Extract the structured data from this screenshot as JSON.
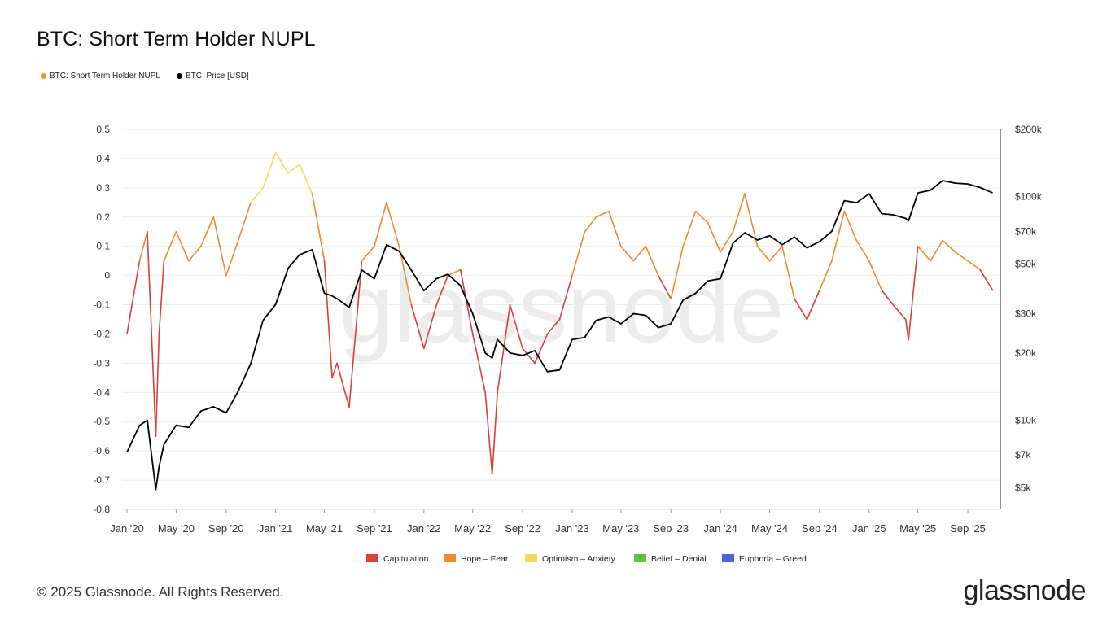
{
  "title": "BTC: Short Term Holder NUPL",
  "legend_top": [
    {
      "label": "BTC: Short Term Holder NUPL",
      "color": "#f7931a"
    },
    {
      "label": "BTC: Price [USD]",
      "color": "#000000"
    }
  ],
  "footer": "© 2025 Glassnode. All Rights Reserved.",
  "brand": "glassnode",
  "watermark": "glassnode",
  "chart_data": {
    "type": "line",
    "title": "BTC: Short Term Holder NUPL",
    "x_ticks": [
      "Jan '20",
      "May '20",
      "Sep '20",
      "Jan '21",
      "May '21",
      "Sep '21",
      "Jan '22",
      "May '22",
      "Sep '22",
      "Jan '23",
      "May '23",
      "Sep '23",
      "Jan '24",
      "May '24",
      "Sep '24",
      "Jan '25",
      "May '25",
      "Sep '25"
    ],
    "y_left_ticks": [
      "0.5",
      "0.4",
      "0.3",
      "0.2",
      "0.1",
      "0",
      "-0.1",
      "-0.2",
      "-0.3",
      "-0.4",
      "-0.5",
      "-0.6",
      "-0.7",
      "-0.8"
    ],
    "y_left_range": [
      -0.8,
      0.5
    ],
    "y_right_ticks": [
      {
        "label": "$200k",
        "value": 200000
      },
      {
        "label": "$100k",
        "value": 100000
      },
      {
        "label": "$70k",
        "value": 70000
      },
      {
        "label": "$50k",
        "value": 50000
      },
      {
        "label": "$30k",
        "value": 30000
      },
      {
        "label": "$20k",
        "value": 20000
      },
      {
        "label": "$10k",
        "value": 10000
      },
      {
        "label": "$7k",
        "value": 7000
      },
      {
        "label": "$5k",
        "value": 5000
      }
    ],
    "y_right_scale": "log",
    "zones": [
      {
        "name": "Capitulation",
        "color": "#d9403a"
      },
      {
        "name": "Hope – Fear",
        "color": "#ef8a31"
      },
      {
        "name": "Optimism – Anxiety",
        "color": "#f3dc58"
      },
      {
        "name": "Belief – Denial",
        "color": "#5cc240"
      },
      {
        "name": "Euphoria – Greed",
        "color": "#4a63dd"
      }
    ],
    "series": [
      {
        "name": "BTC: Short Term Holder NUPL",
        "axis": "left",
        "x": [
          "2020-01",
          "2020-02",
          "2020-02-20",
          "2020-03-12",
          "2020-03-20",
          "2020-04",
          "2020-05",
          "2020-06",
          "2020-07",
          "2020-08",
          "2020-09",
          "2020-10",
          "2020-11",
          "2020-12",
          "2021-01",
          "2021-02",
          "2021-03",
          "2021-04",
          "2021-05",
          "2021-05-20",
          "2021-06",
          "2021-07",
          "2021-08",
          "2021-09",
          "2021-10",
          "2021-11",
          "2021-12",
          "2022-01",
          "2022-02",
          "2022-03",
          "2022-04",
          "2022-05",
          "2022-06",
          "2022-06-18",
          "2022-07",
          "2022-08",
          "2022-09",
          "2022-10",
          "2022-11",
          "2022-12",
          "2023-01",
          "2023-02",
          "2023-03",
          "2023-04",
          "2023-05",
          "2023-06",
          "2023-07",
          "2023-08",
          "2023-09",
          "2023-10",
          "2023-11",
          "2023-12",
          "2024-01",
          "2024-02",
          "2024-03",
          "2024-04",
          "2024-05",
          "2024-06",
          "2024-07",
          "2024-08",
          "2024-09",
          "2024-10",
          "2024-11",
          "2024-12",
          "2025-01",
          "2025-02",
          "2025-03",
          "2025-04",
          "2025-04-08",
          "2025-05",
          "2025-06",
          "2025-07",
          "2025-08",
          "2025-09",
          "2025-10",
          "2025-11"
        ],
        "y": [
          -0.2,
          0.05,
          0.15,
          -0.55,
          -0.2,
          0.05,
          0.15,
          0.05,
          0.1,
          0.2,
          0.0,
          0.12,
          0.25,
          0.3,
          0.42,
          0.35,
          0.38,
          0.28,
          0.05,
          -0.35,
          -0.3,
          -0.45,
          0.05,
          0.1,
          0.25,
          0.1,
          -0.1,
          -0.25,
          -0.1,
          0.0,
          0.02,
          -0.2,
          -0.4,
          -0.68,
          -0.4,
          -0.1,
          -0.25,
          -0.3,
          -0.2,
          -0.15,
          0.0,
          0.15,
          0.2,
          0.22,
          0.1,
          0.05,
          0.1,
          0.0,
          -0.08,
          0.1,
          0.22,
          0.18,
          0.08,
          0.15,
          0.28,
          0.1,
          0.05,
          0.1,
          -0.08,
          -0.15,
          -0.05,
          0.05,
          0.22,
          0.12,
          0.05,
          -0.05,
          -0.1,
          -0.15,
          -0.22,
          0.1,
          0.05,
          0.12,
          0.08,
          0.05,
          0.02,
          -0.05
        ]
      },
      {
        "name": "BTC: Price [USD]",
        "axis": "right",
        "x": [
          "2020-01",
          "2020-02",
          "2020-02-20",
          "2020-03-12",
          "2020-03-20",
          "2020-04",
          "2020-05",
          "2020-06",
          "2020-07",
          "2020-08",
          "2020-09",
          "2020-10",
          "2020-11",
          "2020-12",
          "2021-01",
          "2021-02",
          "2021-03",
          "2021-04",
          "2021-05",
          "2021-05-20",
          "2021-06",
          "2021-07",
          "2021-08",
          "2021-09",
          "2021-10",
          "2021-11",
          "2021-12",
          "2022-01",
          "2022-02",
          "2022-03",
          "2022-04",
          "2022-05",
          "2022-06",
          "2022-06-18",
          "2022-07",
          "2022-08",
          "2022-09",
          "2022-10",
          "2022-11",
          "2022-12",
          "2023-01",
          "2023-02",
          "2023-03",
          "2023-04",
          "2023-05",
          "2023-06",
          "2023-07",
          "2023-08",
          "2023-09",
          "2023-10",
          "2023-11",
          "2023-12",
          "2024-01",
          "2024-02",
          "2024-03",
          "2024-04",
          "2024-05",
          "2024-06",
          "2024-07",
          "2024-08",
          "2024-09",
          "2024-10",
          "2024-11",
          "2024-12",
          "2025-01",
          "2025-02",
          "2025-03",
          "2025-04",
          "2025-04-08",
          "2025-05",
          "2025-06",
          "2025-07",
          "2025-08",
          "2025-09",
          "2025-10",
          "2025-11"
        ],
        "y": [
          7200,
          9500,
          10000,
          4900,
          6200,
          7800,
          9500,
          9300,
          11000,
          11500,
          10800,
          13500,
          18000,
          28000,
          33000,
          48000,
          55000,
          58000,
          37000,
          36000,
          35000,
          32000,
          47000,
          43000,
          61000,
          57000,
          47000,
          38000,
          43000,
          45000,
          40000,
          30000,
          20000,
          19000,
          23000,
          20000,
          19500,
          20500,
          16500,
          16800,
          23000,
          23500,
          28000,
          29000,
          27000,
          30000,
          29500,
          26000,
          27000,
          34500,
          37000,
          42000,
          43000,
          62000,
          69000,
          64000,
          67000,
          61000,
          66000,
          59000,
          63000,
          70000,
          96000,
          94000,
          103000,
          84000,
          83000,
          80000,
          78000,
          104000,
          107000,
          118000,
          115000,
          114000,
          110000,
          104000
        ]
      }
    ]
  }
}
